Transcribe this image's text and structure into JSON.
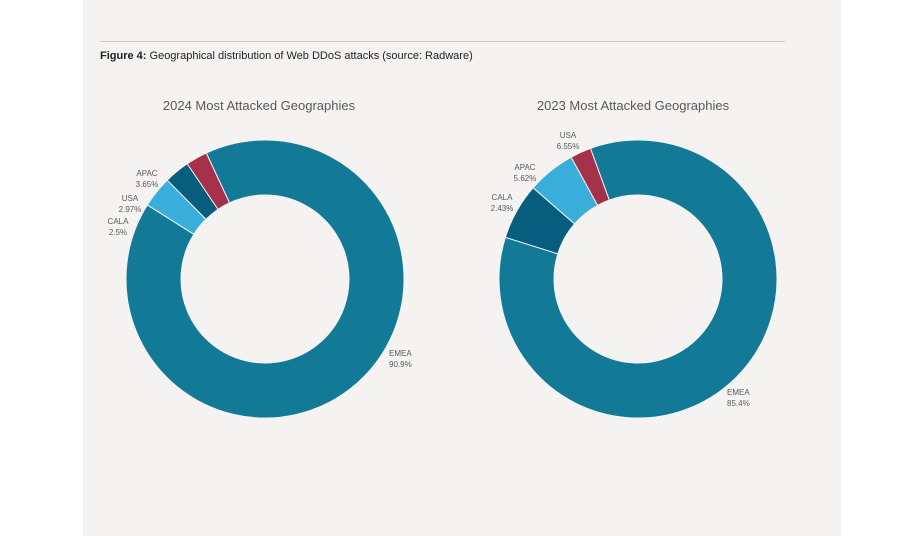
{
  "figure": {
    "label": "Figure 4:",
    "caption": "Geographical distribution of Web DDoS attacks (source: Radware)"
  },
  "colors": {
    "EMEA": "#127a97",
    "APAC": "#3aaedb",
    "USA": "#065d7d",
    "CALA": "#a53049"
  },
  "chart_data": [
    {
      "type": "pie",
      "title": "2024 Most Attacked Geographies",
      "slices": [
        {
          "name": "EMEA",
          "value": 90.9,
          "label": "90.9%"
        },
        {
          "name": "APAC",
          "value": 3.65,
          "label": "3.65%"
        },
        {
          "name": "USA",
          "value": 2.97,
          "label": "2.97%"
        },
        {
          "name": "CALA",
          "value": 2.5,
          "label": "2.5%"
        }
      ]
    },
    {
      "type": "pie",
      "title": "2023 Most Attacked Geographies",
      "slices": [
        {
          "name": "EMEA",
          "value": 85.4,
          "label": "85.4%"
        },
        {
          "name": "USA",
          "value": 6.55,
          "label": "6.55%"
        },
        {
          "name": "APAC",
          "value": 5.62,
          "label": "5.62%"
        },
        {
          "name": "CALA",
          "value": 2.43,
          "label": "2.43%"
        }
      ]
    }
  ]
}
